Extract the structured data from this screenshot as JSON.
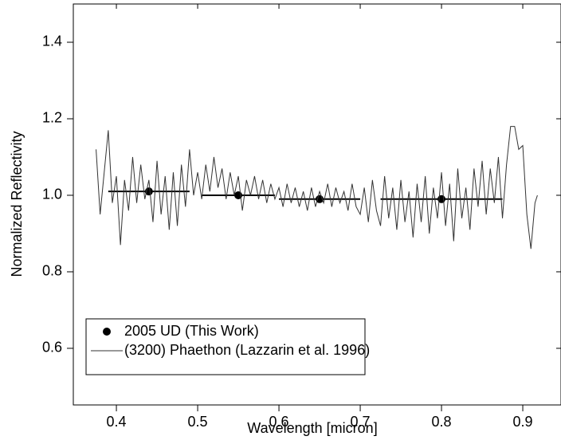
{
  "chart_data": {
    "type": "scatter",
    "xlabel": "Wavelength [micron]",
    "ylabel": "Normalized Reflectivity",
    "xlim": [
      0.347,
      0.948
    ],
    "ylim": [
      0.452,
      1.5
    ],
    "xticks": [
      0.4,
      0.5,
      0.6,
      0.7,
      0.8,
      0.9
    ],
    "yticks": [
      0.6,
      0.8,
      {
        "value": 1,
        "label": "1.0"
      },
      1.2,
      1.4
    ],
    "legend": "lower left",
    "series": [
      {
        "name": "2005 UD (This Work)",
        "color": "#000000",
        "kind": "points",
        "x": [
          0.44,
          0.55,
          0.65,
          0.8
        ],
        "values": [
          1.01,
          1.0,
          0.99,
          0.99
        ],
        "xerr": [
          0.05,
          0.045,
          0.05,
          0.075
        ]
      },
      {
        "name": "(3200) Phaethon (Lazzarin et al. 1996)",
        "color": "#333333",
        "kind": "line",
        "x": [
          0.375,
          0.38,
          0.385,
          0.39,
          0.395,
          0.4,
          0.405,
          0.41,
          0.415,
          0.42,
          0.425,
          0.43,
          0.435,
          0.44,
          0.445,
          0.45,
          0.455,
          0.46,
          0.465,
          0.47,
          0.475,
          0.48,
          0.485,
          0.49,
          0.495,
          0.5,
          0.505,
          0.51,
          0.515,
          0.52,
          0.525,
          0.53,
          0.535,
          0.54,
          0.545,
          0.55,
          0.555,
          0.56,
          0.565,
          0.57,
          0.575,
          0.58,
          0.585,
          0.59,
          0.595,
          0.6,
          0.605,
          0.61,
          0.615,
          0.62,
          0.625,
          0.63,
          0.635,
          0.64,
          0.645,
          0.65,
          0.655,
          0.66,
          0.665,
          0.67,
          0.675,
          0.68,
          0.685,
          0.69,
          0.695,
          0.7,
          0.705,
          0.71,
          0.715,
          0.72,
          0.725,
          0.73,
          0.735,
          0.74,
          0.745,
          0.75,
          0.755,
          0.76,
          0.765,
          0.77,
          0.775,
          0.78,
          0.785,
          0.79,
          0.795,
          0.8,
          0.805,
          0.81,
          0.815,
          0.82,
          0.825,
          0.83,
          0.835,
          0.84,
          0.845,
          0.85,
          0.855,
          0.86,
          0.865,
          0.87,
          0.875,
          0.88,
          0.885,
          0.89,
          0.895,
          0.9,
          0.905,
          0.91,
          0.915,
          0.918
        ],
        "values": [
          1.12,
          0.95,
          1.06,
          1.17,
          0.98,
          1.05,
          0.87,
          1.04,
          0.96,
          1.1,
          0.98,
          1.08,
          0.99,
          1.04,
          0.93,
          1.09,
          0.95,
          1.05,
          0.91,
          1.06,
          0.92,
          1.08,
          0.97,
          1.12,
          1.0,
          1.06,
          0.99,
          1.08,
          1.01,
          1.1,
          1.02,
          1.07,
          0.99,
          1.06,
          1.0,
          1.05,
          0.96,
          1.04,
          1.0,
          1.05,
          0.99,
          1.04,
          0.98,
          1.03,
          0.99,
          1.02,
          0.97,
          1.03,
          0.98,
          1.02,
          0.97,
          1.01,
          0.96,
          1.02,
          0.97,
          1.01,
          0.98,
          1.03,
          0.97,
          1.02,
          0.98,
          1.01,
          0.96,
          1.03,
          0.97,
          0.95,
          1.02,
          0.93,
          1.04,
          0.96,
          0.92,
          1.05,
          0.94,
          1.02,
          0.91,
          1.04,
          0.93,
          1.01,
          0.89,
          1.03,
          0.93,
          1.05,
          0.9,
          1.02,
          0.94,
          1.06,
          0.92,
          1.03,
          0.88,
          1.07,
          0.94,
          1.02,
          0.91,
          1.07,
          0.97,
          1.09,
          0.95,
          1.07,
          0.98,
          1.1,
          0.94,
          1.08,
          1.18,
          1.18,
          1.12,
          1.13,
          0.95,
          0.86,
          0.98,
          1.0
        ]
      }
    ]
  }
}
